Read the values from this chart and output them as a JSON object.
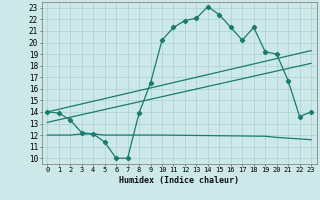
{
  "title": "",
  "xlabel": "Humidex (Indice chaleur)",
  "bg_color": "#cce8e8",
  "grid_color": "#aad0d0",
  "line_color": "#1a7a6e",
  "xlim": [
    -0.5,
    23.5
  ],
  "ylim": [
    9.5,
    23.5
  ],
  "yticks": [
    10,
    11,
    12,
    13,
    14,
    15,
    16,
    17,
    18,
    19,
    20,
    21,
    22,
    23
  ],
  "xticks": [
    0,
    1,
    2,
    3,
    4,
    5,
    6,
    7,
    8,
    9,
    10,
    11,
    12,
    13,
    14,
    15,
    16,
    17,
    18,
    19,
    20,
    21,
    22,
    23
  ],
  "curve1_x": [
    0,
    1,
    2,
    3,
    4,
    5,
    6,
    7,
    8,
    9,
    10,
    11,
    12,
    13,
    14,
    15,
    16,
    17,
    18,
    19,
    20,
    21,
    22,
    23
  ],
  "curve1_y": [
    14.0,
    13.9,
    13.3,
    12.2,
    12.1,
    11.4,
    10.0,
    10.0,
    13.9,
    16.5,
    20.2,
    21.3,
    21.9,
    22.1,
    23.1,
    22.4,
    21.3,
    20.2,
    21.3,
    19.2,
    19.0,
    16.7,
    13.6,
    14.0
  ],
  "curve2_x": [
    0,
    23
  ],
  "curve2_y": [
    14.0,
    19.3
  ],
  "curve3_x": [
    0,
    23
  ],
  "curve3_y": [
    13.1,
    18.2
  ],
  "curve4_x": [
    0,
    2,
    3,
    4,
    5,
    7,
    9,
    10,
    19,
    20,
    23
  ],
  "curve4_y": [
    12.0,
    12.0,
    12.1,
    12.1,
    12.0,
    12.0,
    12.0,
    12.0,
    11.9,
    11.8,
    11.6
  ],
  "marker_size": 2.2,
  "linewidth": 0.9
}
